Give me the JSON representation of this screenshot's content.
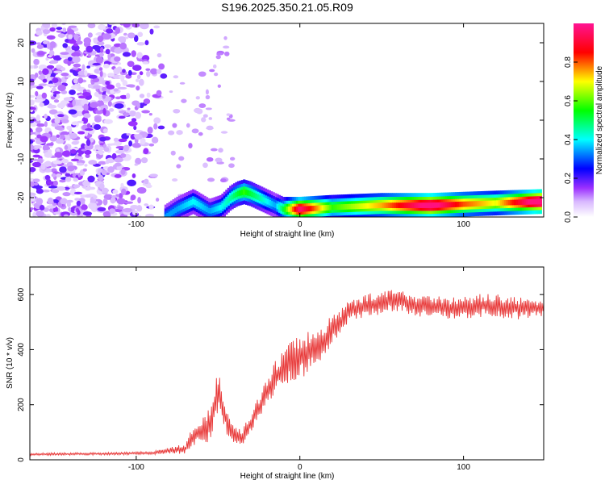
{
  "title": "S196.2025.350.21.05.R09",
  "chart_data": [
    {
      "type": "heatmap",
      "title": "S196.2025.350.21.05.R09",
      "xlabel": "Height of straight line (km)",
      "ylabel": "Frequency (Hz)",
      "xlim": [
        -165,
        149
      ],
      "ylim": [
        -25,
        25
      ],
      "xticks": [
        -100,
        0,
        100
      ],
      "yticks": [
        -20,
        -10,
        0,
        10,
        20
      ],
      "colorbar": {
        "label": "Normalized spectral amplitude",
        "range": [
          0,
          1
        ],
        "ticks": [
          "0.0",
          "0.2",
          "0.4",
          "0.6",
          "0.8"
        ],
        "stops": [
          "#ffffff",
          "#9b30ff",
          "#0000ff",
          "#00ffff",
          "#00ff00",
          "#ffff00",
          "#ff0000",
          "#ff1493"
        ]
      },
      "noise_region_x": [
        -165,
        -80
      ],
      "tone_ridge": {
        "x": [
          -82,
          -75,
          -65,
          -55,
          -48,
          -42,
          -38,
          -34,
          -30,
          -25,
          -20,
          -15,
          -10,
          0,
          20,
          50,
          80,
          100,
          120,
          148
        ],
        "freq_hz": [
          -25,
          -23,
          -21,
          -23.5,
          -22.5,
          -20,
          -19,
          -18.5,
          -19,
          -20,
          -21,
          -22,
          -23,
          -23,
          -22.5,
          -22,
          -22,
          -21.7,
          -21.4,
          -21
        ],
        "amplitude": [
          0.3,
          0.3,
          0.35,
          0.3,
          0.35,
          0.4,
          0.45,
          0.5,
          0.45,
          0.4,
          0.35,
          0.3,
          0.45,
          0.85,
          0.5,
          0.65,
          0.9,
          0.7,
          0.6,
          0.95
        ]
      }
    },
    {
      "type": "line",
      "xlabel": "Height of straight line (km)",
      "ylabel": "SNR (10 * v/v)",
      "xlim": [
        -165,
        149
      ],
      "ylim": [
        0,
        700
      ],
      "xticks": [
        -100,
        0,
        100
      ],
      "yticks": [
        0,
        200,
        400,
        600
      ],
      "color": "#e83a3a",
      "series": [
        {
          "name": "SNR",
          "x": [
            -165,
            -120,
            -90,
            -70,
            -65,
            -60,
            -55,
            -50,
            -45,
            -40,
            -35,
            -30,
            -25,
            -20,
            -15,
            -10,
            -5,
            0,
            5,
            10,
            15,
            20,
            25,
            30,
            40,
            50,
            60,
            70,
            80,
            90,
            100,
            110,
            120,
            130,
            140,
            149
          ],
          "y": [
            20,
            22,
            25,
            40,
            90,
            100,
            130,
            250,
            150,
            90,
            80,
            130,
            190,
            250,
            300,
            330,
            360,
            370,
            390,
            400,
            430,
            480,
            500,
            540,
            560,
            570,
            580,
            560,
            560,
            550,
            550,
            560,
            560,
            550,
            550,
            550
          ],
          "spread": [
            8,
            8,
            10,
            30,
            60,
            80,
            110,
            120,
            90,
            60,
            60,
            60,
            70,
            80,
            100,
            110,
            130,
            140,
            130,
            120,
            110,
            90,
            80,
            70,
            70,
            70,
            70,
            70,
            70,
            70,
            70,
            70,
            70,
            70,
            60,
            50
          ]
        }
      ]
    }
  ]
}
